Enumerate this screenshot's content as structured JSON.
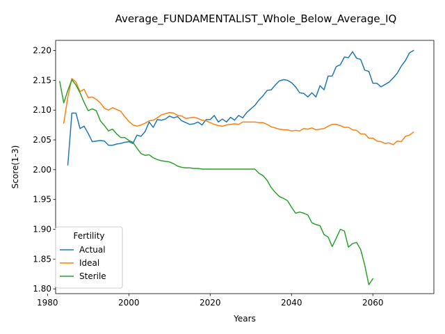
{
  "chart_data": {
    "type": "line",
    "title": "Average_FUNDAMENTALIST_Whole_Below_Average_IQ",
    "xlabel": "Years",
    "ylabel": "Score(1-3)",
    "xlim": [
      1982,
      2075
    ],
    "ylim": [
      1.792,
      2.217
    ],
    "xticks": [
      1980,
      2000,
      2020,
      2040,
      2060
    ],
    "yticks": [
      "1.80",
      "1.85",
      "1.90",
      "1.95",
      "2.00",
      "2.05",
      "2.10",
      "2.15",
      "2.20"
    ],
    "grid": false,
    "legend": {
      "title": "Fertility",
      "position": "lower-left"
    },
    "series": [
      {
        "name": "Actual",
        "color": "#1f77b4",
        "points": [
          [
            1985,
            2.008
          ],
          [
            1986,
            2.095
          ],
          [
            1987,
            2.095
          ],
          [
            1988,
            2.069
          ],
          [
            1989,
            2.073
          ],
          [
            1990,
            2.061
          ],
          [
            1991,
            2.047
          ],
          [
            1992,
            2.048
          ],
          [
            1993,
            2.049
          ],
          [
            1994,
            2.048
          ],
          [
            1995,
            2.041
          ],
          [
            1996,
            2.041
          ],
          [
            1997,
            2.043
          ],
          [
            1998,
            2.044
          ],
          [
            1999,
            2.046
          ],
          [
            2000,
            2.047
          ],
          [
            2001,
            2.044
          ],
          [
            2002,
            2.058
          ],
          [
            2003,
            2.056
          ],
          [
            2004,
            2.064
          ],
          [
            2005,
            2.08
          ],
          [
            2006,
            2.071
          ],
          [
            2007,
            2.084
          ],
          [
            2008,
            2.083
          ],
          [
            2009,
            2.085
          ],
          [
            2010,
            2.09
          ],
          [
            2011,
            2.087
          ],
          [
            2012,
            2.089
          ],
          [
            2013,
            2.082
          ],
          [
            2014,
            2.079
          ],
          [
            2015,
            2.076
          ],
          [
            2016,
            2.077
          ],
          [
            2017,
            2.08
          ],
          [
            2018,
            2.075
          ],
          [
            2019,
            2.084
          ],
          [
            2020,
            2.084
          ],
          [
            2021,
            2.091
          ],
          [
            2022,
            2.08
          ],
          [
            2023,
            2.085
          ],
          [
            2024,
            2.08
          ],
          [
            2025,
            2.088
          ],
          [
            2026,
            2.083
          ],
          [
            2027,
            2.091
          ],
          [
            2028,
            2.087
          ],
          [
            2029,
            2.096
          ],
          [
            2030,
            2.102
          ],
          [
            2031,
            2.108
          ],
          [
            2032,
            2.117
          ],
          [
            2033,
            2.124
          ],
          [
            2034,
            2.133
          ],
          [
            2035,
            2.134
          ],
          [
            2036,
            2.142
          ],
          [
            2037,
            2.149
          ],
          [
            2038,
            2.151
          ],
          [
            2039,
            2.15
          ],
          [
            2040,
            2.146
          ],
          [
            2041,
            2.139
          ],
          [
            2042,
            2.129
          ],
          [
            2043,
            2.128
          ],
          [
            2044,
            2.122
          ],
          [
            2045,
            2.129
          ],
          [
            2046,
            2.122
          ],
          [
            2047,
            2.141
          ],
          [
            2048,
            2.134
          ],
          [
            2049,
            2.157
          ],
          [
            2050,
            2.157
          ],
          [
            2051,
            2.173
          ],
          [
            2052,
            2.176
          ],
          [
            2053,
            2.189
          ],
          [
            2054,
            2.188
          ],
          [
            2055,
            2.198
          ],
          [
            2056,
            2.187
          ],
          [
            2057,
            2.185
          ],
          [
            2058,
            2.167
          ],
          [
            2059,
            2.165
          ],
          [
            2060,
            2.145
          ],
          [
            2061,
            2.145
          ],
          [
            2062,
            2.139
          ],
          [
            2063,
            2.143
          ],
          [
            2064,
            2.147
          ],
          [
            2065,
            2.154
          ],
          [
            2066,
            2.162
          ],
          [
            2067,
            2.174
          ],
          [
            2068,
            2.183
          ],
          [
            2069,
            2.196
          ],
          [
            2070,
            2.2
          ]
        ]
      },
      {
        "name": "Ideal",
        "color": "#ff7f0e",
        "points": [
          [
            1984,
            2.078
          ],
          [
            1985,
            2.122
          ],
          [
            1986,
            2.153
          ],
          [
            1987,
            2.147
          ],
          [
            1988,
            2.131
          ],
          [
            1989,
            2.135
          ],
          [
            1990,
            2.121
          ],
          [
            1991,
            2.122
          ],
          [
            1992,
            2.118
          ],
          [
            1993,
            2.112
          ],
          [
            1994,
            2.103
          ],
          [
            1995,
            2.1
          ],
          [
            1996,
            2.104
          ],
          [
            1997,
            2.101
          ],
          [
            1998,
            2.098
          ],
          [
            1999,
            2.089
          ],
          [
            2000,
            2.081
          ],
          [
            2001,
            2.075
          ],
          [
            2002,
            2.073
          ],
          [
            2003,
            2.075
          ],
          [
            2004,
            2.078
          ],
          [
            2005,
            2.082
          ],
          [
            2006,
            2.083
          ],
          [
            2007,
            2.087
          ],
          [
            2008,
            2.092
          ],
          [
            2009,
            2.094
          ],
          [
            2010,
            2.096
          ],
          [
            2011,
            2.095
          ],
          [
            2012,
            2.091
          ],
          [
            2013,
            2.09
          ],
          [
            2014,
            2.086
          ],
          [
            2015,
            2.087
          ],
          [
            2016,
            2.088
          ],
          [
            2017,
            2.086
          ],
          [
            2018,
            2.083
          ],
          [
            2019,
            2.082
          ],
          [
            2020,
            2.079
          ],
          [
            2021,
            2.076
          ],
          [
            2022,
            2.074
          ],
          [
            2023,
            2.073
          ],
          [
            2024,
            2.075
          ],
          [
            2025,
            2.076
          ],
          [
            2026,
            2.077
          ],
          [
            2027,
            2.076
          ],
          [
            2028,
            2.08
          ],
          [
            2029,
            2.08
          ],
          [
            2030,
            2.08
          ],
          [
            2031,
            2.08
          ],
          [
            2032,
            2.079
          ],
          [
            2033,
            2.079
          ],
          [
            2034,
            2.076
          ],
          [
            2035,
            2.072
          ],
          [
            2036,
            2.07
          ],
          [
            2037,
            2.068
          ],
          [
            2038,
            2.067
          ],
          [
            2039,
            2.067
          ],
          [
            2040,
            2.065
          ],
          [
            2041,
            2.066
          ],
          [
            2042,
            2.065
          ],
          [
            2043,
            2.069
          ],
          [
            2044,
            2.068
          ],
          [
            2045,
            2.07
          ],
          [
            2046,
            2.067
          ],
          [
            2047,
            2.068
          ],
          [
            2048,
            2.069
          ],
          [
            2049,
            2.073
          ],
          [
            2050,
            2.076
          ],
          [
            2051,
            2.076
          ],
          [
            2052,
            2.074
          ],
          [
            2053,
            2.071
          ],
          [
            2054,
            2.071
          ],
          [
            2055,
            2.067
          ],
          [
            2056,
            2.066
          ],
          [
            2057,
            2.06
          ],
          [
            2058,
            2.06
          ],
          [
            2059,
            2.053
          ],
          [
            2060,
            2.053
          ],
          [
            2061,
            2.048
          ],
          [
            2062,
            2.047
          ],
          [
            2063,
            2.044
          ],
          [
            2064,
            2.045
          ],
          [
            2065,
            2.042
          ],
          [
            2066,
            2.048
          ],
          [
            2067,
            2.047
          ],
          [
            2068,
            2.056
          ],
          [
            2069,
            2.058
          ],
          [
            2070,
            2.063
          ]
        ]
      },
      {
        "name": "Sterile",
        "color": "#2ca02c",
        "points": [
          [
            1983,
            2.148
          ],
          [
            1984,
            2.112
          ],
          [
            1985,
            2.133
          ],
          [
            1986,
            2.151
          ],
          [
            1987,
            2.142
          ],
          [
            1988,
            2.129
          ],
          [
            1989,
            2.113
          ],
          [
            1990,
            2.099
          ],
          [
            1991,
            2.102
          ],
          [
            1992,
            2.099
          ],
          [
            1993,
            2.082
          ],
          [
            1994,
            2.074
          ],
          [
            1995,
            2.065
          ],
          [
            1996,
            2.068
          ],
          [
            1997,
            2.06
          ],
          [
            1998,
            2.054
          ],
          [
            1999,
            2.054
          ],
          [
            2000,
            2.049
          ],
          [
            2001,
            2.046
          ],
          [
            2002,
            2.036
          ],
          [
            2003,
            2.027
          ],
          [
            2004,
            2.024
          ],
          [
            2005,
            2.025
          ],
          [
            2006,
            2.02
          ],
          [
            2007,
            2.017
          ],
          [
            2008,
            2.015
          ],
          [
            2009,
            2.014
          ],
          [
            2010,
            2.013
          ],
          [
            2011,
            2.01
          ],
          [
            2012,
            2.006
          ],
          [
            2013,
            2.004
          ],
          [
            2014,
            2.003
          ],
          [
            2015,
            2.003
          ],
          [
            2016,
            2.002
          ],
          [
            2017,
            2.002
          ],
          [
            2018,
            2.001
          ],
          [
            2019,
            2.001
          ],
          [
            2020,
            2.001
          ],
          [
            2021,
            2.001
          ],
          [
            2022,
            2.001
          ],
          [
            2023,
            2.001
          ],
          [
            2024,
            2.001
          ],
          [
            2025,
            2.001
          ],
          [
            2026,
            2.001
          ],
          [
            2027,
            2.001
          ],
          [
            2028,
            2.001
          ],
          [
            2029,
            2.001
          ],
          [
            2030,
            2.001
          ],
          [
            2031,
            2.001
          ],
          [
            2032,
            1.994
          ],
          [
            2033,
            1.99
          ],
          [
            2034,
            1.982
          ],
          [
            2035,
            1.97
          ],
          [
            2036,
            1.962
          ],
          [
            2037,
            1.955
          ],
          [
            2038,
            1.952
          ],
          [
            2039,
            1.948
          ],
          [
            2040,
            1.937
          ],
          [
            2041,
            1.927
          ],
          [
            2042,
            1.929
          ],
          [
            2043,
            1.927
          ],
          [
            2044,
            1.924
          ],
          [
            2045,
            1.911
          ],
          [
            2046,
            1.908
          ],
          [
            2047,
            1.906
          ],
          [
            2048,
            1.891
          ],
          [
            2049,
            1.887
          ],
          [
            2050,
            1.871
          ],
          [
            2051,
            1.885
          ],
          [
            2052,
            1.9
          ],
          [
            2053,
            1.897
          ],
          [
            2054,
            1.87
          ],
          [
            2055,
            1.876
          ],
          [
            2056,
            1.878
          ],
          [
            2057,
            1.866
          ],
          [
            2058,
            1.84
          ],
          [
            2059,
            1.807
          ],
          [
            2060,
            1.817
          ]
        ]
      }
    ]
  }
}
